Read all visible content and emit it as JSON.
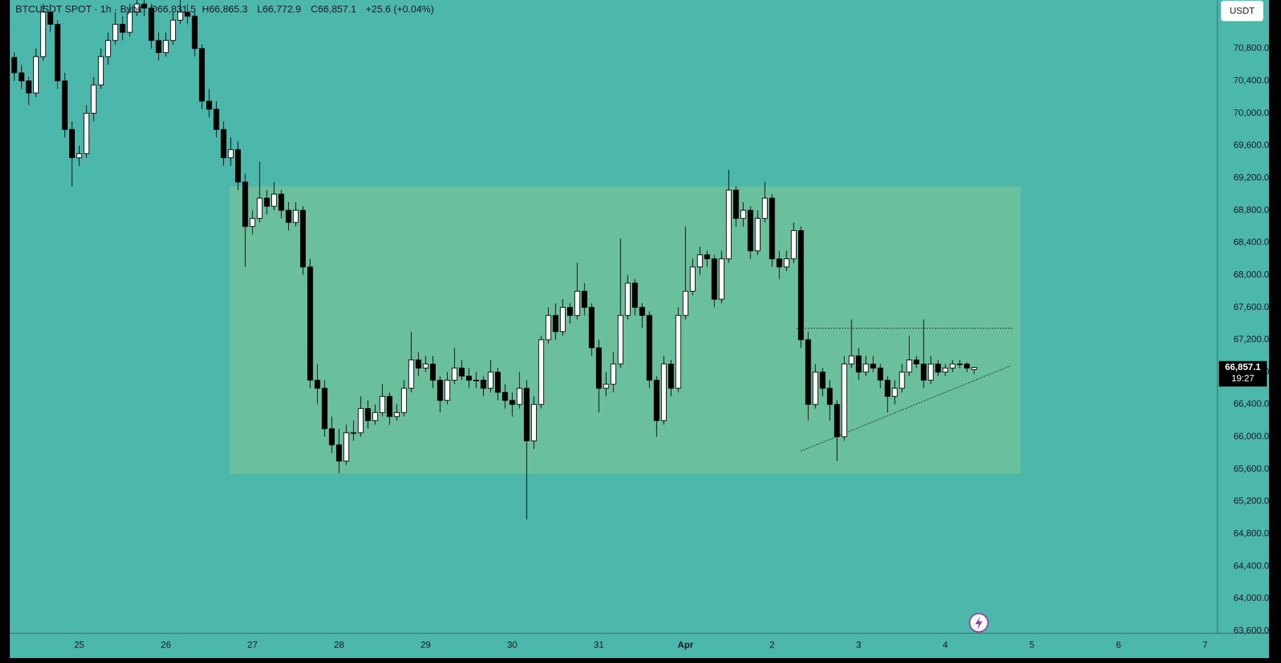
{
  "chart_data": {
    "type": "candlestick",
    "title": "BTCUSDT SPOT · 1h · Bybit",
    "ohlc_labels": [
      "O66,831.5",
      "H66,865.3",
      "L66,772.9",
      "C66,857.1"
    ],
    "change_label": "+25.6 (+0.04%)",
    "unit_button": "USDT",
    "last_price_label": "66,857.1",
    "countdown": "19:27",
    "up_color": "#ffffff",
    "down_color": "#000000",
    "ylim": [
      63570,
      71400
    ],
    "yticks": [
      {
        "value": 63600,
        "label": "63,600.0"
      },
      {
        "value": 64000,
        "label": "64,000.0"
      },
      {
        "value": 64400,
        "label": "64,400.0"
      },
      {
        "value": 64800,
        "label": "64,800.0"
      },
      {
        "value": 65200,
        "label": "65,200.0"
      },
      {
        "value": 65600,
        "label": "65,600.0"
      },
      {
        "value": 66000,
        "label": "66,000.0"
      },
      {
        "value": 66400,
        "label": "66,400.0"
      },
      {
        "value": 66800,
        "label": "66,800.0"
      },
      {
        "value": 67200,
        "label": "67,200.0"
      },
      {
        "value": 67600,
        "label": "67,600.0"
      },
      {
        "value": 68000,
        "label": "68,000.0"
      },
      {
        "value": 68400,
        "label": "68,400.0"
      },
      {
        "value": 68800,
        "label": "68,800.0"
      },
      {
        "value": 69200,
        "label": "69,200.0"
      },
      {
        "value": 69600,
        "label": "69,600.0"
      },
      {
        "value": 70000,
        "label": "70,000.0"
      },
      {
        "value": 70400,
        "label": "70,400.0"
      },
      {
        "value": 70800,
        "label": "70,800.0"
      }
    ],
    "categories": [
      null,
      null,
      null,
      null,
      null,
      null,
      null,
      null,
      null,
      null,
      "25",
      null,
      null,
      null,
      null,
      null,
      null,
      null,
      null,
      null,
      null,
      null,
      "26",
      null,
      null,
      null,
      null,
      null,
      null,
      null,
      null,
      null,
      null,
      null,
      "27",
      null,
      null,
      null,
      null,
      null,
      null,
      null,
      null,
      null,
      null,
      null,
      "28",
      null,
      null,
      null,
      null,
      null,
      null,
      null,
      null,
      null,
      null,
      null,
      "29",
      null,
      null,
      null,
      null,
      null,
      null,
      null,
      null,
      null,
      null,
      null,
      "30",
      null,
      null,
      null,
      null,
      null,
      null,
      null,
      null,
      null,
      null,
      null,
      "31",
      null,
      null,
      null,
      null,
      null,
      null,
      null,
      null,
      null,
      null,
      null,
      "Apr",
      null,
      null,
      null,
      null,
      null,
      null,
      null,
      null,
      null,
      null,
      null,
      "2",
      null,
      null,
      null,
      null,
      null,
      null,
      null,
      null,
      null,
      null,
      null,
      "3",
      null,
      null,
      null,
      null,
      null,
      null,
      null,
      null,
      null,
      null,
      null,
      "4",
      null,
      null,
      null,
      null,
      null,
      null,
      null,
      null,
      null,
      null,
      null,
      "5",
      null,
      null,
      null,
      null,
      null,
      null,
      null,
      null,
      null,
      null,
      null,
      "6",
      null,
      null,
      null,
      null,
      null,
      null,
      null,
      null,
      null,
      null,
      null,
      "7",
      null
    ],
    "candles": [
      [
        70800,
        70900,
        70600,
        70690
      ],
      [
        70690,
        70750,
        70400,
        70500
      ],
      [
        70500,
        70600,
        70300,
        70400
      ],
      [
        70400,
        70450,
        70100,
        70250
      ],
      [
        70250,
        70800,
        70200,
        70700
      ],
      [
        70700,
        71350,
        70650,
        71250
      ],
      [
        71250,
        71350,
        71000,
        71100
      ],
      [
        71100,
        71150,
        70300,
        70400
      ],
      [
        70400,
        70500,
        69700,
        69800
      ],
      [
        69800,
        69900,
        69100,
        69450
      ],
      [
        69450,
        69600,
        69350,
        69500
      ],
      [
        69500,
        70100,
        69450,
        70000
      ],
      [
        70000,
        70450,
        69900,
        70350
      ],
      [
        70350,
        70800,
        70300,
        70700
      ],
      [
        70700,
        71000,
        70600,
        70900
      ],
      [
        70900,
        71250,
        70850,
        71100
      ],
      [
        71100,
        71200,
        70900,
        71000
      ],
      [
        71000,
        71350,
        70950,
        71250
      ],
      [
        71250,
        71500,
        71200,
        71350
      ],
      [
        71350,
        71450,
        71200,
        71300
      ],
      [
        71300,
        71350,
        70800,
        70900
      ],
      [
        70900,
        71000,
        70650,
        70750
      ],
      [
        70750,
        71000,
        70700,
        70900
      ],
      [
        70900,
        71250,
        70850,
        71150
      ],
      [
        71150,
        71400,
        71100,
        71250
      ],
      [
        71250,
        71350,
        71100,
        71200
      ],
      [
        71200,
        71250,
        70700,
        70800
      ],
      [
        70800,
        70850,
        70050,
        70150
      ],
      [
        70150,
        70300,
        69950,
        70050
      ],
      [
        70050,
        70150,
        69700,
        69800
      ],
      [
        69800,
        69900,
        69350,
        69450
      ],
      [
        69450,
        69700,
        69350,
        69550
      ],
      [
        69550,
        69650,
        69050,
        69150
      ],
      [
        69150,
        69250,
        68100,
        68600
      ],
      [
        68600,
        68800,
        68500,
        68700
      ],
      [
        68700,
        69400,
        68650,
        68950
      ],
      [
        68950,
        69050,
        68750,
        68850
      ],
      [
        68850,
        69150,
        68800,
        69000
      ],
      [
        69000,
        69050,
        68700,
        68800
      ],
      [
        68800,
        68900,
        68550,
        68650
      ],
      [
        68650,
        68900,
        68600,
        68800
      ],
      [
        68800,
        68850,
        68000,
        68100
      ],
      [
        68100,
        68200,
        66600,
        66700
      ],
      [
        66700,
        66900,
        66400,
        66600
      ],
      [
        66600,
        66700,
        66000,
        66100
      ],
      [
        66100,
        66250,
        65800,
        65900
      ],
      [
        65900,
        66100,
        65550,
        65700
      ],
      [
        65700,
        66150,
        65650,
        66050
      ],
      [
        66050,
        66200,
        65950,
        66050
      ],
      [
        66050,
        66500,
        66000,
        66350
      ],
      [
        66350,
        66450,
        66100,
        66200
      ],
      [
        66200,
        66400,
        66150,
        66300
      ],
      [
        66300,
        66650,
        66250,
        66500
      ],
      [
        66500,
        66550,
        66150,
        66250
      ],
      [
        66250,
        66400,
        66200,
        66300
      ],
      [
        66300,
        66700,
        66250,
        66600
      ],
      [
        66600,
        67300,
        66550,
        66950
      ],
      [
        66950,
        67050,
        66750,
        66850
      ],
      [
        66850,
        67000,
        66800,
        66900
      ],
      [
        66900,
        67000,
        66600,
        66700
      ],
      [
        66700,
        66750,
        66300,
        66450
      ],
      [
        66450,
        66800,
        66400,
        66700
      ],
      [
        66700,
        67100,
        66650,
        66850
      ],
      [
        66850,
        66950,
        66700,
        66750
      ],
      [
        66750,
        66850,
        66600,
        66700
      ],
      [
        66700,
        66800,
        66600,
        66700
      ],
      [
        66700,
        66750,
        66500,
        66600
      ],
      [
        66600,
        66950,
        66550,
        66800
      ],
      [
        66800,
        66850,
        66450,
        66550
      ],
      [
        66550,
        66650,
        66350,
        66450
      ],
      [
        66450,
        66550,
        66250,
        66400
      ],
      [
        66400,
        66800,
        66350,
        66600
      ],
      [
        66600,
        66700,
        64980,
        65950
      ],
      [
        65950,
        66500,
        65850,
        66400
      ],
      [
        66400,
        67250,
        66350,
        67200
      ],
      [
        67200,
        67600,
        67150,
        67500
      ],
      [
        67500,
        67650,
        67200,
        67300
      ],
      [
        67300,
        67700,
        67250,
        67600
      ],
      [
        67600,
        67650,
        67400,
        67500
      ],
      [
        67500,
        68150,
        67450,
        67800
      ],
      [
        67800,
        67900,
        67500,
        67600
      ],
      [
        67600,
        67650,
        67000,
        67100
      ],
      [
        67100,
        67200,
        66300,
        66600
      ],
      [
        66600,
        66800,
        66500,
        66650
      ],
      [
        66650,
        67050,
        66550,
        66900
      ],
      [
        66900,
        68450,
        66850,
        67500
      ],
      [
        67500,
        68000,
        67450,
        67900
      ],
      [
        67900,
        67950,
        67500,
        67600
      ],
      [
        67600,
        67650,
        67350,
        67500
      ],
      [
        67500,
        67550,
        66600,
        66700
      ],
      [
        66700,
        66750,
        66000,
        66200
      ],
      [
        66200,
        67000,
        66150,
        66900
      ],
      [
        66900,
        66950,
        66500,
        66600
      ],
      [
        66600,
        67600,
        66550,
        67500
      ],
      [
        67500,
        68600,
        67450,
        67800
      ],
      [
        67800,
        68200,
        67750,
        68100
      ],
      [
        68100,
        68350,
        68000,
        68250
      ],
      [
        68250,
        68300,
        68100,
        68200
      ],
      [
        68200,
        68250,
        67600,
        67700
      ],
      [
        67700,
        68300,
        67650,
        68200
      ],
      [
        68200,
        69300,
        68150,
        69050
      ],
      [
        69050,
        69100,
        68600,
        68700
      ],
      [
        68700,
        68900,
        68600,
        68800
      ],
      [
        68800,
        68850,
        68200,
        68300
      ],
      [
        68300,
        68800,
        68250,
        68700
      ],
      [
        68700,
        69150,
        68650,
        68950
      ],
      [
        68950,
        69000,
        68100,
        68200
      ],
      [
        68200,
        68300,
        67950,
        68100
      ],
      [
        68100,
        68300,
        68050,
        68200
      ],
      [
        68200,
        68650,
        68150,
        68550
      ],
      [
        68550,
        68600,
        67100,
        67200
      ],
      [
        67200,
        67300,
        66200,
        66400
      ],
      [
        66400,
        66900,
        66350,
        66800
      ],
      [
        66800,
        66850,
        66500,
        66600
      ],
      [
        66600,
        66700,
        66200,
        66400
      ],
      [
        66400,
        66450,
        65700,
        66000
      ],
      [
        66000,
        67000,
        65950,
        66900
      ],
      [
        66900,
        67450,
        66850,
        67000
      ],
      [
        67000,
        67100,
        66700,
        66800
      ],
      [
        66800,
        67000,
        66750,
        66900
      ],
      [
        66900,
        67000,
        66800,
        66850
      ],
      [
        66850,
        66900,
        66600,
        66700
      ],
      [
        66700,
        66750,
        66300,
        66500
      ],
      [
        66500,
        66700,
        66400,
        66600
      ],
      [
        66600,
        66900,
        66550,
        66800
      ],
      [
        66800,
        67250,
        66750,
        66950
      ],
      [
        66950,
        67000,
        66850,
        66900
      ],
      [
        66900,
        67450,
        66600,
        66700
      ],
      [
        66700,
        67000,
        66650,
        66900
      ],
      [
        66900,
        66950,
        66750,
        66800
      ],
      [
        66800,
        66900,
        66750,
        66850
      ],
      [
        66850,
        66950,
        66800,
        66900
      ],
      [
        66900,
        66950,
        66850,
        66900
      ],
      [
        66900,
        66920,
        66800,
        66850
      ],
      [
        66831.5,
        66865.3,
        66772.9,
        66857.1
      ],
      null,
      null,
      null,
      null,
      null,
      null,
      null,
      null,
      null,
      null,
      null,
      null,
      null,
      null,
      null,
      null,
      null,
      null,
      null,
      null,
      null,
      null,
      null,
      null,
      null,
      null,
      null,
      null,
      null,
      null,
      null,
      null,
      null
    ]
  }
}
